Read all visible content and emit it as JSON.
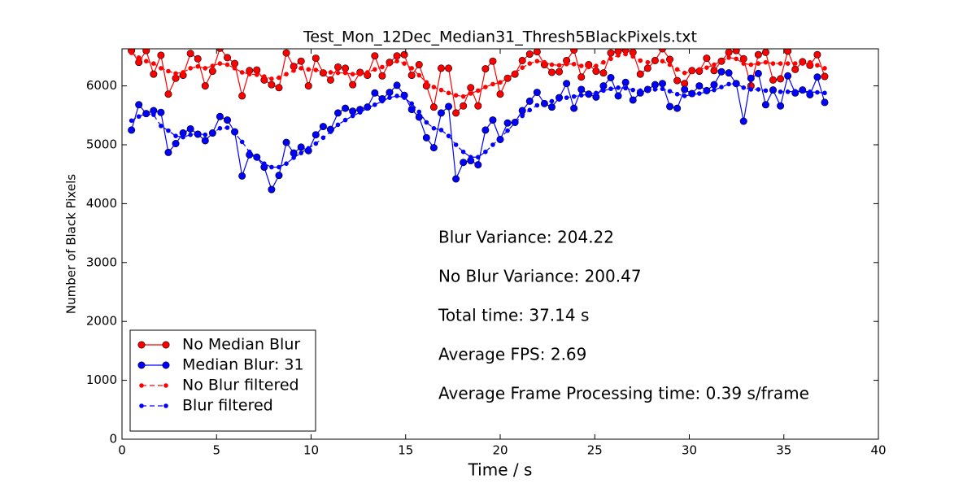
{
  "chart_data": {
    "type": "line",
    "title": "Test_Mon_12Dec_Median31_Thresh5BlackPixels.txt",
    "x_label": "Time / s",
    "y_label": "Number of Black Pixels",
    "xlim": [
      0,
      40
    ],
    "ylim": [
      0,
      6630
    ],
    "xticks": [
      0,
      5,
      10,
      15,
      20,
      25,
      30,
      35,
      40
    ],
    "yticks": [
      0,
      1000,
      2000,
      3000,
      4000,
      5000,
      6000
    ],
    "grid": false,
    "legend": "lower left",
    "annotations": [
      "Blur Variance: 204.22",
      "No Blur Variance: 200.47",
      "Total time: 37.14 s",
      "Average FPS: 2.69",
      "Average Frame Processing time: 0.39 s/frame"
    ],
    "x": [
      0.5,
      0.89,
      1.28,
      1.67,
      2.06,
      2.45,
      2.84,
      3.23,
      3.62,
      4.01,
      4.4,
      4.79,
      5.18,
      5.57,
      5.96,
      6.35,
      6.74,
      7.13,
      7.52,
      7.91,
      8.3,
      8.69,
      9.08,
      9.47,
      9.86,
      10.25,
      10.64,
      11.03,
      11.42,
      11.81,
      12.2,
      12.59,
      12.98,
      13.37,
      13.76,
      14.15,
      14.54,
      14.93,
      15.32,
      15.71,
      16.1,
      16.49,
      16.88,
      17.27,
      17.66,
      18.05,
      18.44,
      18.83,
      19.22,
      19.61,
      20.0,
      20.39,
      20.78,
      21.17,
      21.56,
      21.95,
      22.34,
      22.73,
      23.12,
      23.51,
      23.9,
      24.29,
      24.68,
      25.07,
      25.46,
      25.85,
      26.24,
      26.63,
      27.02,
      27.41,
      27.8,
      28.19,
      28.58,
      28.97,
      29.36,
      29.75,
      30.14,
      30.53,
      30.92,
      31.31,
      31.7,
      32.09,
      32.48,
      32.87,
      33.26,
      33.65,
      34.04,
      34.43,
      34.82,
      35.21,
      35.6,
      35.99,
      36.38,
      36.77,
      37.16
    ],
    "series": [
      {
        "name": "No Median Blur",
        "color": "#ff0000",
        "style": "solid",
        "marker": "large",
        "values": [
          6600,
          6400,
          6600,
          6200,
          6520,
          5860,
          6130,
          6180,
          6550,
          6460,
          6000,
          6250,
          6640,
          6480,
          6380,
          5830,
          6260,
          6270,
          6100,
          6020,
          5970,
          6560,
          6330,
          6420,
          6000,
          6470,
          6220,
          6100,
          6320,
          6300,
          6020,
          6230,
          6180,
          6510,
          6170,
          6400,
          6510,
          6530,
          6180,
          6360,
          6000,
          5640,
          6300,
          6300,
          5540,
          5660,
          5970,
          5660,
          6290,
          6420,
          5860,
          6130,
          6200,
          6430,
          6540,
          6580,
          6360,
          6230,
          6240,
          6430,
          6610,
          6150,
          6360,
          6250,
          6220,
          6560,
          6590,
          6610,
          6570,
          6200,
          6300,
          6430,
          6630,
          6450,
          6090,
          6040,
          6260,
          6250,
          6470,
          6260,
          6420,
          6570,
          6600,
          6460,
          6000,
          6530,
          6570,
          6100,
          6120,
          6590,
          6280,
          6410,
          6350,
          6530,
          6160
        ]
      },
      {
        "name": "Median Blur: 31",
        "color": "#0000ff",
        "style": "solid",
        "marker": "large",
        "values": [
          5250,
          5680,
          5530,
          5580,
          5550,
          4870,
          5020,
          5200,
          5270,
          5180,
          5070,
          5200,
          5480,
          5420,
          5220,
          4470,
          4830,
          4790,
          4620,
          4240,
          4480,
          5040,
          4860,
          4960,
          4900,
          5170,
          5310,
          5260,
          5540,
          5620,
          5570,
          5600,
          5640,
          5880,
          5780,
          5890,
          6010,
          5840,
          5600,
          5470,
          5120,
          4950,
          5540,
          5650,
          4420,
          4700,
          4730,
          4660,
          5250,
          5420,
          5090,
          5370,
          5380,
          5580,
          5740,
          5890,
          5700,
          5640,
          5800,
          6040,
          5620,
          5940,
          5860,
          5810,
          6000,
          6140,
          5830,
          6060,
          5760,
          5880,
          5940,
          6020,
          6040,
          5650,
          5620,
          5940,
          5870,
          6000,
          5920,
          6020,
          6240,
          6220,
          6040,
          5400,
          6130,
          6210,
          5680,
          5930,
          5660,
          6170,
          5880,
          5930,
          5850,
          6150,
          5720
        ]
      },
      {
        "name": "No Blur filtered",
        "color": "#ff0000",
        "style": "dashed",
        "marker": "small",
        "values": [
          6560,
          6480,
          6420,
          6380,
          6300,
          6250,
          6210,
          6230,
          6300,
          6330,
          6300,
          6340,
          6380,
          6360,
          6300,
          6230,
          6200,
          6190,
          6160,
          6120,
          6140,
          6200,
          6260,
          6300,
          6280,
          6270,
          6240,
          6230,
          6220,
          6220,
          6200,
          6200,
          6230,
          6280,
          6320,
          6370,
          6420,
          6380,
          6300,
          6180,
          6060,
          5980,
          5930,
          5880,
          5840,
          5820,
          5870,
          5920,
          5980,
          6030,
          6060,
          6130,
          6220,
          6310,
          6380,
          6420,
          6400,
          6360,
          6350,
          6370,
          6370,
          6340,
          6320,
          6340,
          6400,
          6460,
          6520,
          6540,
          6500,
          6430,
          6400,
          6420,
          6420,
          6360,
          6280,
          6220,
          6240,
          6280,
          6310,
          6360,
          6420,
          6480,
          6460,
          6380,
          6360,
          6380,
          6400,
          6380,
          6380,
          6380,
          6380,
          6380,
          6400,
          6350,
          6300
        ]
      },
      {
        "name": "Blur filtered",
        "color": "#0000ff",
        "style": "dashed",
        "marker": "small",
        "values": [
          5410,
          5480,
          5530,
          5510,
          5320,
          5240,
          5150,
          5130,
          5170,
          5190,
          5170,
          5200,
          5280,
          5290,
          5200,
          5050,
          4880,
          4780,
          4680,
          4620,
          4620,
          4680,
          4780,
          4860,
          4940,
          5020,
          5120,
          5220,
          5340,
          5420,
          5490,
          5550,
          5620,
          5680,
          5740,
          5800,
          5830,
          5800,
          5700,
          5560,
          5380,
          5280,
          5250,
          5150,
          5000,
          4880,
          4790,
          4790,
          4880,
          5000,
          5110,
          5240,
          5370,
          5490,
          5590,
          5670,
          5720,
          5740,
          5770,
          5800,
          5820,
          5840,
          5860,
          5880,
          5920,
          5950,
          5970,
          5960,
          5930,
          5920,
          5930,
          5940,
          5950,
          5910,
          5860,
          5830,
          5850,
          5870,
          5900,
          5930,
          5980,
          6030,
          6040,
          5970,
          5940,
          5940,
          5920,
          5910,
          5900,
          5900,
          5910,
          5910,
          5900,
          5890,
          5880
        ]
      }
    ]
  }
}
